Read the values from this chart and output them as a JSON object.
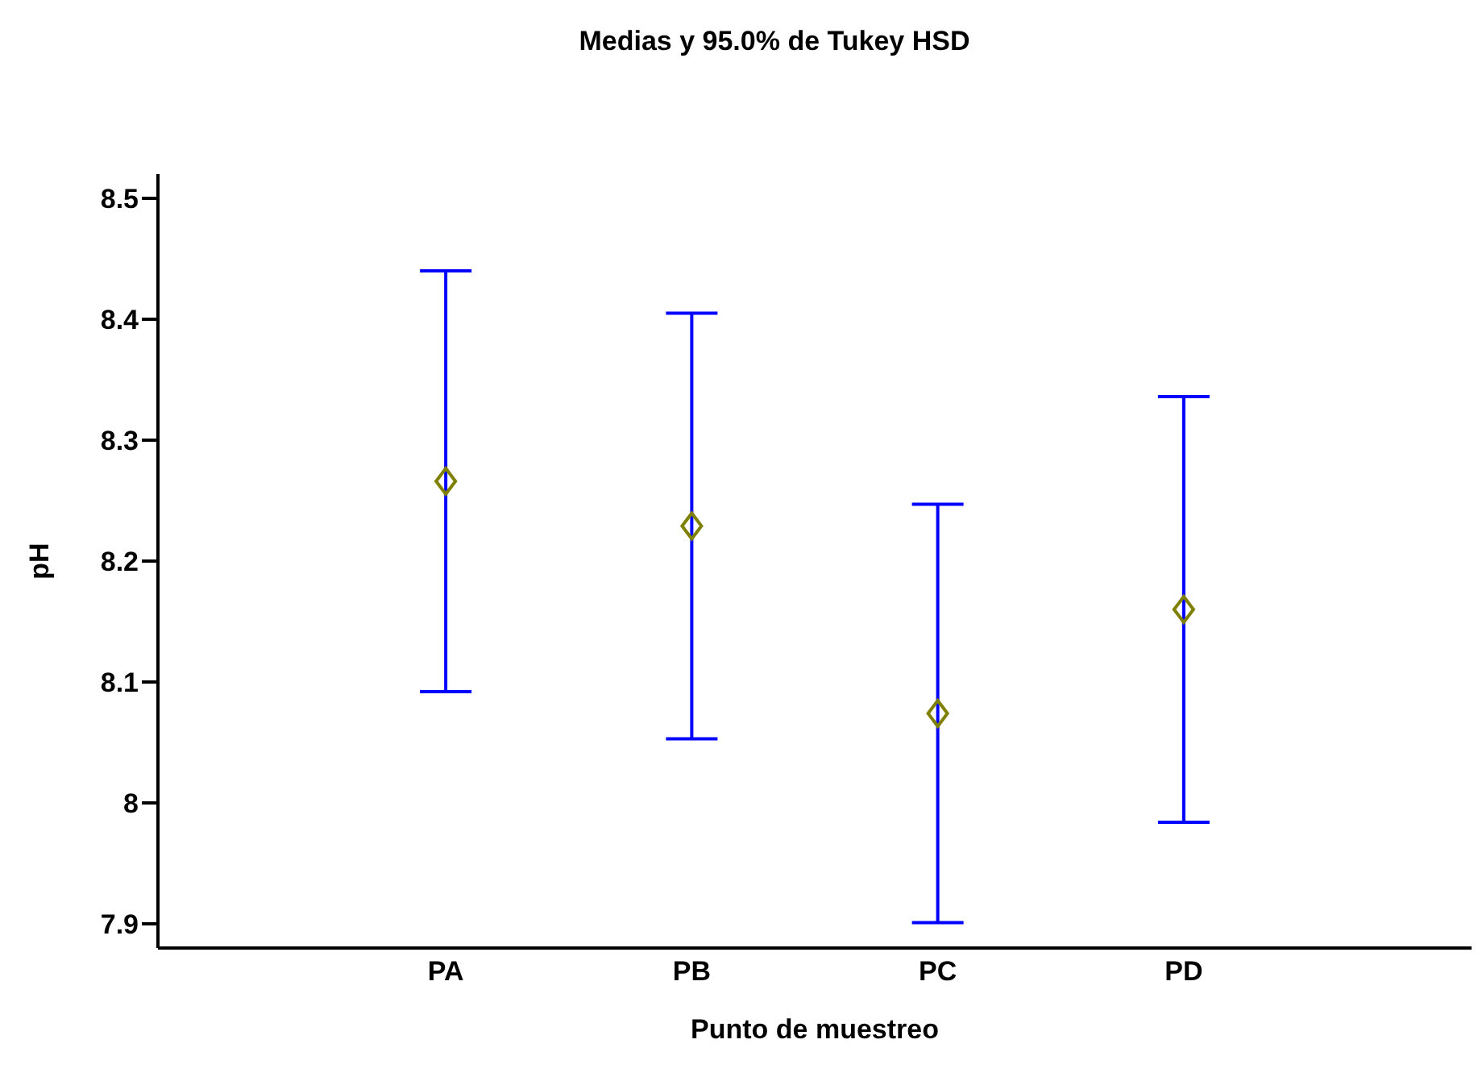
{
  "chart_data": {
    "type": "scatter",
    "title": "Medias y 95.0% de Tukey HSD",
    "xlabel": "Punto de muestreo",
    "ylabel": "pH",
    "categories": [
      "PA",
      "PB",
      "PC",
      "PD"
    ],
    "series": [
      {
        "color": "#808000",
        "values": [
          8.266,
          8.229,
          8.074,
          8.16
        ],
        "errors": [
          0.174,
          0.176,
          0.173,
          0.176
        ]
      }
    ],
    "ylim": [
      7.88,
      8.52
    ],
    "yticks": [
      7.9,
      8,
      8.1,
      8.2,
      8.3,
      8.4,
      8.5
    ],
    "marker": "diamond"
  }
}
